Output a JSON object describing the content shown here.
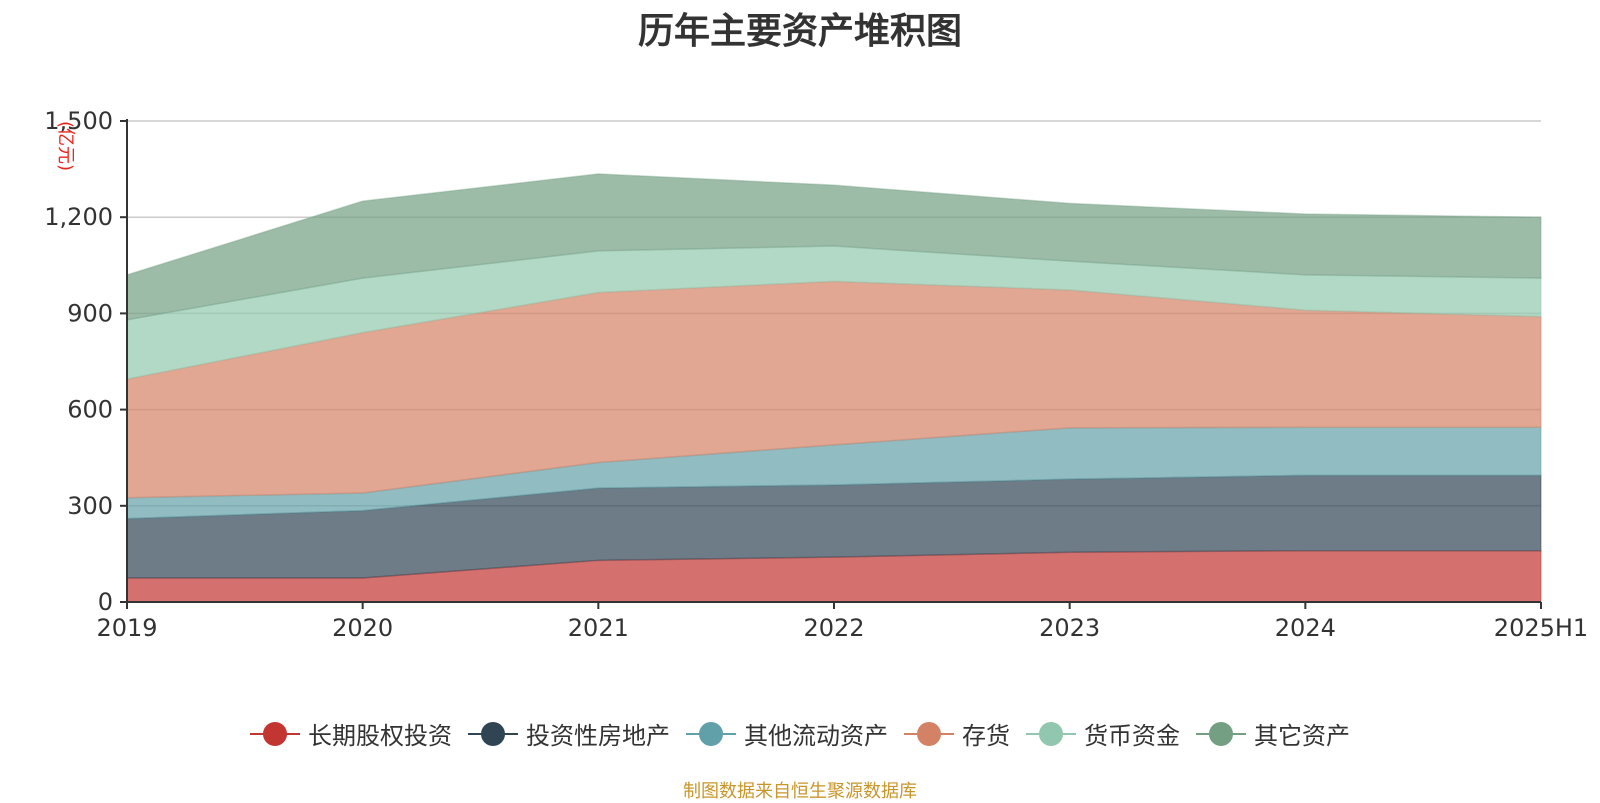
{
  "chart_data": {
    "type": "area",
    "stacked": true,
    "title": "历年主要资产堆积图",
    "unit_label": "(亿元)",
    "categories": [
      "2019",
      "2020",
      "2021",
      "2022",
      "2023",
      "2024",
      "2025H1"
    ],
    "ylim": [
      0,
      1500
    ],
    "yticks": [
      0,
      300,
      600,
      900,
      1200,
      1500
    ],
    "ytick_labels": [
      "0",
      "300",
      "600",
      "900",
      "1,200",
      "1,500"
    ],
    "grid": true,
    "legend_position": "bottom",
    "series": [
      {
        "name": "长期股权投资",
        "color": "#c23531",
        "values": [
          75,
          75,
          130,
          140,
          155,
          160,
          160
        ]
      },
      {
        "name": "投资性房地产",
        "color": "#2f4554",
        "values": [
          185,
          210,
          225,
          225,
          228,
          235,
          235
        ]
      },
      {
        "name": "其他流动资产",
        "color": "#61a0a8",
        "values": [
          65,
          55,
          80,
          125,
          160,
          150,
          150
        ]
      },
      {
        "name": "存货",
        "color": "#d48265",
        "values": [
          370,
          500,
          530,
          510,
          430,
          365,
          345
        ]
      },
      {
        "name": "货币资金",
        "color": "#91c7ae",
        "values": [
          185,
          170,
          130,
          110,
          90,
          110,
          120
        ]
      },
      {
        "name": "其它资产",
        "color": "#749f83",
        "values": [
          140,
          240,
          240,
          190,
          180,
          190,
          190
        ]
      }
    ]
  },
  "source_note": "制图数据来自恒生聚源数据库"
}
